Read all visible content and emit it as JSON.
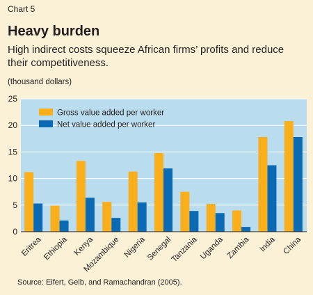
{
  "header": {
    "chart_number": "Chart 5",
    "title": "Heavy burden",
    "subtitle": "High indirect costs squeeze African firms’ profits and reduce their competitiveness.",
    "unit": "(thousand dollars)"
  },
  "source": "Source: Eifert, Gelb, and Ramachandran (2005).",
  "colors": {
    "plot_bg": "#b9dcef",
    "gross": "#f9ae1b",
    "net": "#0b6ab4",
    "page_bg": "#fbf1d6"
  },
  "chart_data": {
    "type": "bar",
    "title": "Heavy burden",
    "ylabel": "(thousand dollars)",
    "ylim": [
      0,
      25
    ],
    "yticks": [
      0,
      5,
      10,
      15,
      20,
      25
    ],
    "grid": true,
    "legend_position": "top-left",
    "categories": [
      "Eritrea",
      "Ethiopia",
      "Kenya",
      "Mozambique",
      "Nigeria",
      "Senegal",
      "Tanzania",
      "Uganda",
      "Zambia",
      "India",
      "China"
    ],
    "series": [
      {
        "name": "Gross value added per worker",
        "values": [
          11.2,
          4.9,
          13.3,
          5.6,
          11.3,
          14.8,
          7.5,
          5.2,
          4.0,
          17.8,
          20.8
        ]
      },
      {
        "name": "Net value added per worker",
        "values": [
          5.3,
          2.1,
          6.4,
          2.6,
          5.5,
          11.9,
          3.9,
          3.5,
          0.9,
          12.5,
          17.8
        ]
      }
    ]
  }
}
